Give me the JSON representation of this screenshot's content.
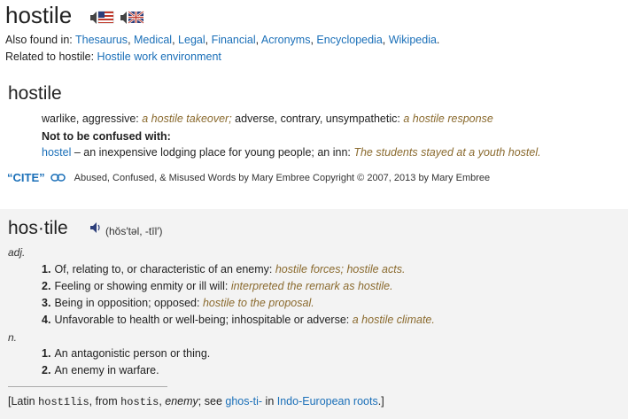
{
  "head": {
    "word": "hostile"
  },
  "flags": [
    {
      "name": "us-audio",
      "label": ""
    },
    {
      "name": "uk-audio",
      "label": ""
    }
  ],
  "also_found": {
    "prefix": "Also found in:",
    "links": [
      "Thesaurus",
      "Medical",
      "Legal",
      "Financial",
      "Acronyms",
      "Encyclopedia",
      "Wikipedia"
    ]
  },
  "related": {
    "prefix": "Related to hostile:",
    "link": "Hostile work environment"
  },
  "section1": {
    "title": "hostile",
    "syn1": "warlike, aggressive: ",
    "ex1": "a hostile takeover;",
    "syn2": " adverse, contrary, unsympathetic: ",
    "ex2": "a hostile response",
    "confuse_label": "Not to be confused with:",
    "confuse_word": "hostel",
    "confuse_def": " – an inexpensive lodging place for young people; an inn: ",
    "confuse_ex": "The students stayed at a youth hostel.",
    "cite_label": "“CITE”",
    "source": "Abused, Confused, & Misused Words by Mary Embree Copyright © 2007, 2013 by Mary Embree"
  },
  "section2": {
    "title": "hos·tile",
    "pronunciation": "(hŏs′təl, -tīl′)",
    "adj_label": "adj.",
    "adj_senses": [
      {
        "num": "1.",
        "text": "Of, relating to, or characteristic of an enemy: ",
        "ex": "hostile forces; hostile acts."
      },
      {
        "num": "2.",
        "text": "Feeling or showing enmity or ill will: ",
        "ex": "interpreted the remark as hostile."
      },
      {
        "num": "3.",
        "text": "Being in opposition; opposed: ",
        "ex": "hostile to the proposal."
      },
      {
        "num": "4.",
        "text": "Unfavorable to health or well-being; inhospitable or adverse: ",
        "ex": "a hostile climate."
      }
    ],
    "noun_label": "n.",
    "noun_senses": [
      {
        "num": "1.",
        "text": "An antagonistic person or thing."
      },
      {
        "num": "2.",
        "text": "An enemy in warfare."
      }
    ],
    "etym": {
      "open": "[Latin ",
      "w1": "hostīlis",
      "mid1": ", from ",
      "w2": "hostis",
      "mid2": ", ",
      "w3": "enemy",
      "mid3": "; see ",
      "link1": "ghos-ti-",
      "mid4": " in ",
      "link2": "Indo-European roots",
      "close": ".]"
    }
  },
  "colors": {
    "link": "#1a6fb8",
    "example": "#8a6a2e",
    "section_bg": "#f3f3f3"
  }
}
